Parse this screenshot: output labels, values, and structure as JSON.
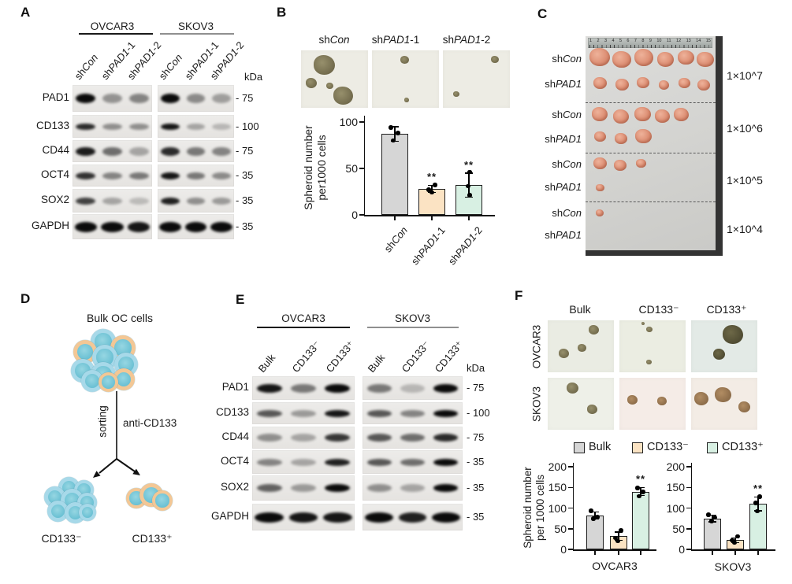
{
  "figure": {
    "panel_a": {
      "label": "A",
      "kda_label": "kDa",
      "cell_lines": [
        "OVCAR3",
        "SKOV3"
      ],
      "lanes": [
        [
          {
            "t": "sh"
          },
          {
            "t": "Con",
            "i": true
          }
        ],
        [
          {
            "t": "sh"
          },
          {
            "t": "PAD1",
            "i": true
          },
          {
            "t": "-1"
          }
        ],
        [
          {
            "t": "sh"
          },
          {
            "t": "PAD1",
            "i": true
          },
          {
            "t": "-2"
          }
        ]
      ],
      "rows": [
        {
          "protein": "PAD1",
          "marker": "- 75",
          "band_h": 12,
          "intensities": [
            [
              1,
              0.38,
              0.45
            ],
            [
              1,
              0.42,
              0.33
            ]
          ]
        },
        {
          "protein": "CD133",
          "marker": "- 100",
          "band_h": 8,
          "intensities": [
            [
              0.85,
              0.4,
              0.4
            ],
            [
              0.95,
              0.3,
              0.22
            ]
          ]
        },
        {
          "protein": "CD44",
          "marker": "- 75",
          "band_h": 11,
          "intensities": [
            [
              0.92,
              0.55,
              0.3
            ],
            [
              0.85,
              0.5,
              0.45
            ]
          ]
        },
        {
          "protein": "OCT4",
          "marker": "- 35",
          "band_h": 9,
          "intensities": [
            [
              0.82,
              0.45,
              0.5
            ],
            [
              0.95,
              0.5,
              0.42
            ]
          ]
        },
        {
          "protein": "SOX2",
          "marker": "- 35",
          "band_h": 9,
          "intensities": [
            [
              0.75,
              0.3,
              0.2
            ],
            [
              0.9,
              0.4,
              0.35
            ]
          ]
        },
        {
          "protein": "GAPDH",
          "marker": "- 35",
          "band_h": 13,
          "intensities": [
            [
              1,
              1,
              0.95
            ],
            [
              1,
              1,
              1
            ]
          ]
        }
      ]
    },
    "panel_b": {
      "label": "B",
      "image_labels": [
        [
          {
            "t": "sh"
          },
          {
            "t": "Con",
            "i": true
          }
        ],
        [
          {
            "t": "sh"
          },
          {
            "t": "PAD1",
            "i": true
          },
          {
            "t": "-1"
          }
        ],
        [
          {
            "t": "sh"
          },
          {
            "t": "PAD1",
            "i": true
          },
          {
            "t": "-2"
          }
        ]
      ],
      "ylabel_line1": "Spheroid number",
      "ylabel_line2": "per1000 cells"
    },
    "panel_c": {
      "label": "C",
      "con_label": [
        {
          "t": "sh"
        },
        {
          "t": "Con",
          "i": true
        }
      ],
      "pad_label": [
        {
          "t": "sh"
        },
        {
          "t": "PAD1",
          "i": true
        }
      ],
      "groups": [
        {
          "dose": "1×10^7",
          "con_count": 6,
          "pad_count": 6
        },
        {
          "dose": "1×10^6",
          "con_count": 5,
          "pad_count": 3
        },
        {
          "dose": "1×10^5",
          "con_count": 3,
          "pad_count": 1
        },
        {
          "dose": "1×10^4",
          "con_count": 1,
          "pad_count": 0
        }
      ],
      "ruler_marks": [
        "1",
        "2",
        "3",
        "4",
        "5",
        "6",
        "7",
        "8",
        "9",
        "10",
        "11",
        "12",
        "13",
        "14",
        "15"
      ]
    },
    "panel_d": {
      "label": "D",
      "title": "Bulk OC cells",
      "sorting_label": "sorting",
      "antibody_label": "anti-CD133",
      "neg_label": "CD133⁻",
      "pos_label": "CD133⁺"
    },
    "panel_e": {
      "label": "E",
      "kda_label": "kDa",
      "cell_lines": [
        "OVCAR3",
        "SKOV3"
      ],
      "lanes": [
        [
          {
            "t": "Bulk"
          }
        ],
        [
          {
            "t": "CD133⁻"
          }
        ],
        [
          {
            "t": "CD133⁺"
          }
        ]
      ],
      "rows": [
        {
          "protein": "PAD1",
          "marker": "- 75",
          "band_h": 11,
          "intensities": [
            [
              0.95,
              0.5,
              1
            ],
            [
              0.5,
              0.22,
              1
            ]
          ]
        },
        {
          "protein": "CD133",
          "marker": "- 100",
          "band_h": 9,
          "intensities": [
            [
              0.65,
              0.35,
              0.95
            ],
            [
              0.65,
              0.45,
              1
            ]
          ]
        },
        {
          "protein": "CD44",
          "marker": "- 75",
          "band_h": 10,
          "intensities": [
            [
              0.4,
              0.3,
              0.8
            ],
            [
              0.65,
              0.55,
              0.85
            ]
          ]
        },
        {
          "protein": "OCT4",
          "marker": "- 35",
          "band_h": 9,
          "intensities": [
            [
              0.45,
              0.3,
              0.9
            ],
            [
              0.65,
              0.55,
              1
            ]
          ]
        },
        {
          "protein": "SOX2",
          "marker": "- 35",
          "band_h": 10,
          "intensities": [
            [
              0.6,
              0.35,
              1
            ],
            [
              0.4,
              0.3,
              1
            ]
          ]
        },
        {
          "protein": "GAPDH",
          "marker": "- 35",
          "band_h": 13,
          "intensities": [
            [
              1,
              0.95,
              0.95
            ],
            [
              1,
              0.9,
              1
            ]
          ]
        }
      ]
    },
    "panel_f": {
      "label": "F",
      "col_labels": [
        "Bulk",
        "CD133⁻",
        "CD133⁺"
      ],
      "row_labels": [
        "OVCAR3",
        "SKOV3"
      ],
      "legend": [
        {
          "label": "Bulk",
          "color": "#d6d6d6"
        },
        {
          "label": "CD133⁻",
          "color": "#fbe3c3"
        },
        {
          "label": "CD133⁺",
          "color": "#d8f0e3"
        }
      ],
      "ylabel_line1": "Spheroid number",
      "ylabel_line2": "per 1000 cells"
    }
  },
  "chart_data": [
    {
      "type": "bar",
      "title": "",
      "categories": [
        "shCon",
        "shPAD1-1",
        "shPAD1-2"
      ],
      "values": [
        87,
        28,
        32
      ],
      "errors": [
        8,
        4,
        13
      ],
      "points": [
        [
          94,
          88,
          80
        ],
        [
          32,
          27,
          24
        ],
        [
          46,
          31,
          21
        ]
      ],
      "significance": [
        "",
        "**",
        "**"
      ],
      "ylabel": "Spheroid number per1000 cells",
      "ylim": [
        0,
        100
      ],
      "yticks": [
        0,
        50,
        100
      ],
      "colors": [
        "#d6d6d6",
        "#fbe3c3",
        "#d8f0e3"
      ],
      "legend_position": "none"
    },
    {
      "type": "bar",
      "title": "OVCAR3",
      "categories": [
        "Bulk",
        "CD133⁻",
        "CD133⁺"
      ],
      "values": [
        82,
        32,
        140
      ],
      "errors": [
        9,
        10,
        10
      ],
      "points": [
        [
          93,
          78,
          74
        ],
        [
          46,
          28,
          20
        ],
        [
          149,
          139,
          129
        ]
      ],
      "significance": [
        "",
        "",
        "**"
      ],
      "ylabel": "Spheroid number per 1000 cells",
      "ylim": [
        0,
        200
      ],
      "yticks": [
        0,
        50,
        100,
        150,
        200
      ],
      "colors": [
        "#d6d6d6",
        "#fbe3c3",
        "#d8f0e3"
      ],
      "legend_position": "top"
    },
    {
      "type": "bar",
      "title": "SKOV3",
      "categories": [
        "Bulk",
        "CD133⁻",
        "CD133⁺"
      ],
      "values": [
        75,
        22,
        110
      ],
      "errors": [
        8,
        6,
        17
      ],
      "points": [
        [
          84,
          77,
          69
        ],
        [
          31,
          22,
          16
        ],
        [
          128,
          112,
          92
        ]
      ],
      "significance": [
        "",
        "",
        "**"
      ],
      "ylabel": "Spheroid number per 1000 cells",
      "ylim": [
        0,
        200
      ],
      "yticks": [
        0,
        50,
        100,
        150,
        200
      ],
      "colors": [
        "#d6d6d6",
        "#fbe3c3",
        "#d8f0e3"
      ],
      "legend_position": "top"
    }
  ]
}
